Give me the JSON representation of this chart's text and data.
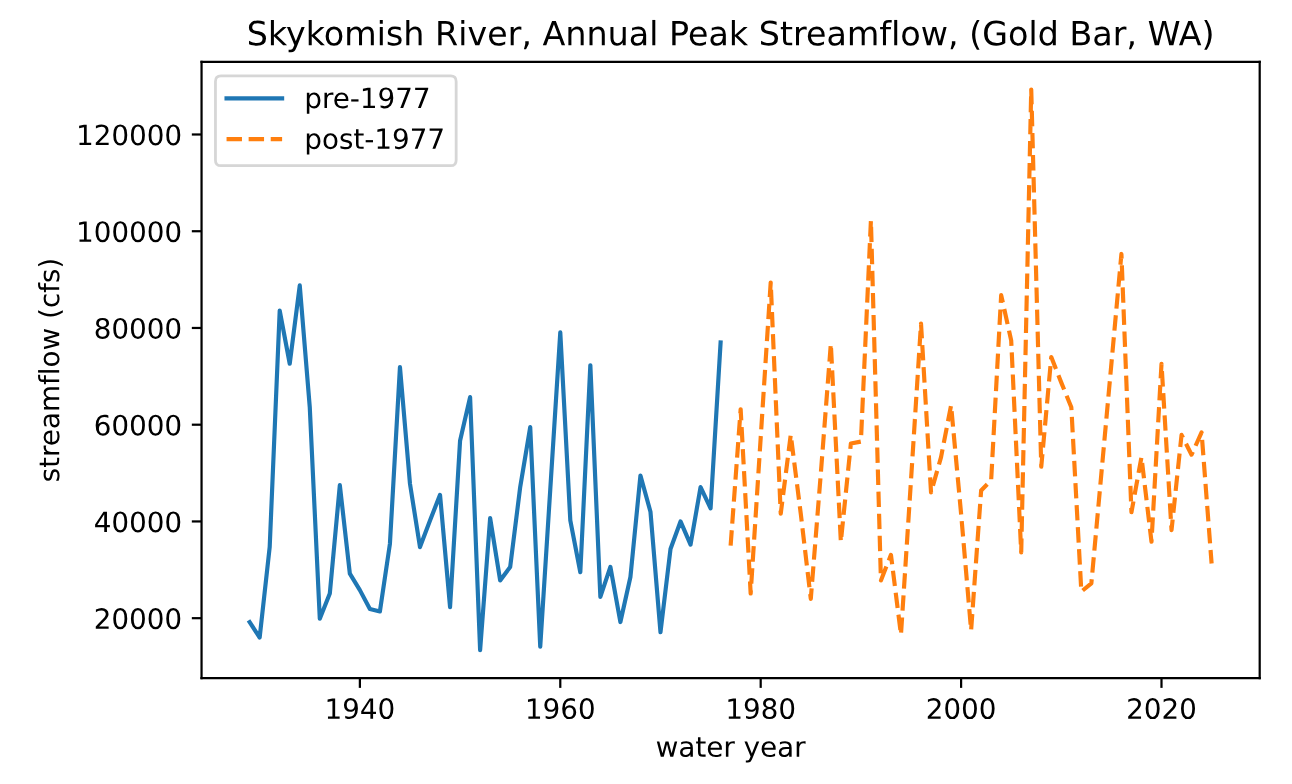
{
  "chart_data": {
    "type": "line",
    "title": "Skykomish River, Annual Peak Streamflow, (Gold Bar, WA)",
    "xlabel": "water year",
    "ylabel": "streamflow (cfs)",
    "xlim": [
      1924.2,
      2029.8
    ],
    "xticks": [
      1940,
      1960,
      1980,
      2000,
      2020
    ],
    "ylim": [
      7600,
      135000
    ],
    "yticks": [
      20000,
      40000,
      60000,
      80000,
      100000,
      120000
    ],
    "legend": "top left",
    "grid": false,
    "series": [
      {
        "name": "pre-1977",
        "color": "#1f77b4",
        "line_style": "solid",
        "x": [
          1929,
          1930,
          1931,
          1932,
          1933,
          1934,
          1935,
          1936,
          1937,
          1938,
          1939,
          1940,
          1941,
          1942,
          1943,
          1944,
          1945,
          1946,
          1947,
          1948,
          1949,
          1950,
          1951,
          1952,
          1953,
          1954,
          1955,
          1956,
          1957,
          1958,
          1959,
          1960,
          1961,
          1962,
          1963,
          1964,
          1965,
          1966,
          1967,
          1968,
          1969,
          1970,
          1971,
          1972,
          1973,
          1974,
          1975,
          1976
        ],
        "values": [
          19200,
          16000,
          34700,
          83600,
          72600,
          88800,
          63600,
          19900,
          25100,
          47500,
          29200,
          25800,
          21900,
          21400,
          35400,
          71900,
          47800,
          34700,
          40200,
          45500,
          22300,
          56700,
          65700,
          13400,
          40700,
          27800,
          30600,
          47100,
          59500,
          14100,
          46600,
          79100,
          40200,
          29500,
          72300,
          24400,
          30600,
          19200,
          28500,
          49500,
          42000,
          17100,
          34300,
          40000,
          35200,
          47100,
          42700,
          77000
        ]
      },
      {
        "name": "post-1977",
        "color": "#ff7f0e",
        "line_style": "dashed",
        "x": [
          1977,
          1978,
          1979,
          1980,
          1981,
          1982,
          1983,
          1984,
          1985,
          1986,
          1987,
          1988,
          1989,
          1990,
          1991,
          1992,
          1993,
          1994,
          1995,
          1996,
          1997,
          1998,
          1999,
          2000,
          2001,
          2002,
          2003,
          2004,
          2005,
          2006,
          2007,
          2008,
          2009,
          2010,
          2011,
          2012,
          2013,
          2014,
          2015,
          2016,
          2017,
          2018,
          2019,
          2020,
          2021,
          2022,
          2023,
          2024,
          2025
        ],
        "values": [
          35000,
          63200,
          25100,
          57300,
          89400,
          41600,
          57900,
          41600,
          24000,
          49900,
          76700,
          35800,
          56100,
          56500,
          102200,
          27800,
          33100,
          16600,
          48500,
          80900,
          46000,
          53300,
          64000,
          41600,
          17500,
          46400,
          48500,
          86800,
          77400,
          33600,
          129300,
          51300,
          74000,
          68700,
          63600,
          25500,
          27200,
          49900,
          72600,
          95300,
          41900,
          53300,
          35800,
          72600,
          38200,
          57900,
          53800,
          58400,
          31300
        ]
      }
    ]
  }
}
